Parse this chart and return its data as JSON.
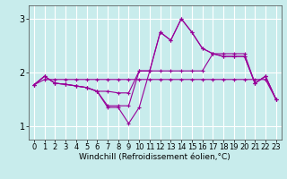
{
  "xlabel": "Windchill (Refroidissement éolien,°C)",
  "background_color": "#c8ecec",
  "grid_color": "#ffffff",
  "line_color": "#990099",
  "x_ticks": [
    0,
    1,
    2,
    3,
    4,
    5,
    6,
    7,
    8,
    9,
    10,
    11,
    12,
    13,
    14,
    15,
    16,
    17,
    18,
    19,
    20,
    21,
    22,
    23
  ],
  "y_ticks": [
    1,
    2,
    3
  ],
  "ylim": [
    0.75,
    3.25
  ],
  "xlim": [
    -0.5,
    23.5
  ],
  "series": [
    [
      1.77,
      1.93,
      1.8,
      1.78,
      1.75,
      1.72,
      1.65,
      1.35,
      1.35,
      1.05,
      1.35,
      2.03,
      2.75,
      2.6,
      3.0,
      2.75,
      2.45,
      2.35,
      2.3,
      2.3,
      2.3,
      1.8,
      1.93,
      1.5
    ],
    [
      1.77,
      1.93,
      1.8,
      1.78,
      1.75,
      1.72,
      1.65,
      1.38,
      1.38,
      1.38,
      2.03,
      2.03,
      2.75,
      2.6,
      3.0,
      2.75,
      2.45,
      2.35,
      2.3,
      2.3,
      2.3,
      1.8,
      1.93,
      1.5
    ],
    [
      1.77,
      1.93,
      1.8,
      1.78,
      1.75,
      1.72,
      1.65,
      1.65,
      1.62,
      1.62,
      2.03,
      2.03,
      2.03,
      2.03,
      2.03,
      2.03,
      2.03,
      2.35,
      2.35,
      2.35,
      2.35,
      1.8,
      1.93,
      1.5
    ],
    [
      1.77,
      1.87,
      1.87,
      1.87,
      1.87,
      1.87,
      1.87,
      1.87,
      1.87,
      1.87,
      1.87,
      1.87,
      1.87,
      1.87,
      1.87,
      1.87,
      1.87,
      1.87,
      1.87,
      1.87,
      1.87,
      1.87,
      1.87,
      1.5
    ]
  ],
  "tick_fontsize": 6,
  "xlabel_fontsize": 6.5
}
